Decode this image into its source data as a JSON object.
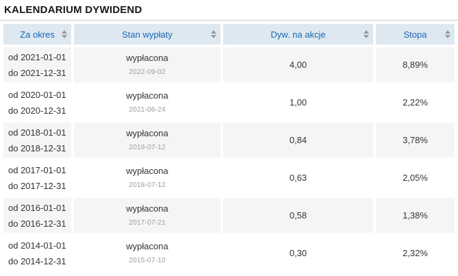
{
  "title": "KALENDARIUM DYWIDEND",
  "colors": {
    "header_bg": "#dde8f0",
    "header_text": "#1a67b3",
    "row_alt_bg": "#f5f5f5",
    "body_text": "#333333",
    "muted_date_text": "#9e9e9e",
    "divider": "#c9c9c9"
  },
  "table": {
    "columns": [
      {
        "label": "Za okres"
      },
      {
        "label": "Stan wypłaty"
      },
      {
        "label": "Dyw. na akcje"
      },
      {
        "label": "Stopa"
      }
    ],
    "rows": [
      {
        "period_from": "od 2021-01-01",
        "period_to": "do 2021-12-31",
        "status": "wypłacona",
        "status_date": "2022-09-02",
        "dividend": "4,00",
        "rate": "8,89%"
      },
      {
        "period_from": "od 2020-01-01",
        "period_to": "do 2020-12-31",
        "status": "wypłacona",
        "status_date": "2021-06-24",
        "dividend": "1,00",
        "rate": "2,22%"
      },
      {
        "period_from": "od 2018-01-01",
        "period_to": "do 2018-12-31",
        "status": "wypłacona",
        "status_date": "2019-07-12",
        "dividend": "0,84",
        "rate": "3,78%"
      },
      {
        "period_from": "od 2017-01-01",
        "period_to": "do 2017-12-31",
        "status": "wypłacona",
        "status_date": "2018-07-12",
        "dividend": "0,63",
        "rate": "2,05%"
      },
      {
        "period_from": "od 2016-01-01",
        "period_to": "do 2016-12-31",
        "status": "wypłacona",
        "status_date": "2017-07-21",
        "dividend": "0,58",
        "rate": "1,38%"
      },
      {
        "period_from": "od 2014-01-01",
        "period_to": "do 2014-12-31",
        "status": "wypłacona",
        "status_date": "2015-07-10",
        "dividend": "0,30",
        "rate": "2,32%"
      }
    ]
  }
}
